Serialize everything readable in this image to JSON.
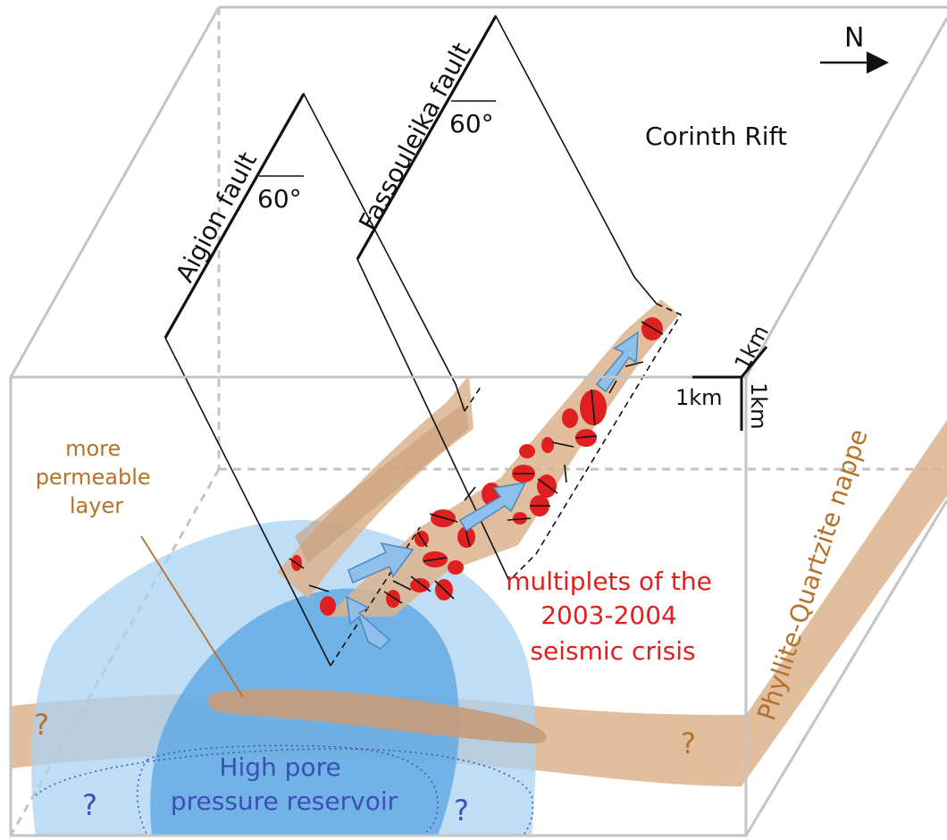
{
  "labels": {
    "north": "N",
    "region": "Corinth Rift",
    "aigion_fault": "Aigion fault",
    "fassouleika_fault": "Fassouleika fault",
    "dip_aigion": "60°",
    "dip_fassouleika": "60°",
    "permeable_layer": [
      "more",
      "permeable",
      "layer"
    ],
    "multiplets": [
      "multiplets of the",
      "2003-2004",
      "seismic crisis"
    ],
    "reservoir": [
      "High pore",
      "pressure reservoir"
    ],
    "nappe": "Phyllite-Quartzite nappe",
    "unknown": "?",
    "scale_x": "1km",
    "scale_y": "1km",
    "scale_z": "1km"
  },
  "colors": {
    "box_edge": "#c4c4c4",
    "layer_brown": "#dcb38d",
    "layer_brown_dark": "#c79c7a",
    "reservoir_light": "#a9d1f2",
    "reservoir_dark": "#5ea8e4",
    "seismic_red": "#e02020",
    "arrow_blue": "#8fc0ec",
    "label_brown": "#b5722a",
    "label_blue": "#3c50b4"
  }
}
